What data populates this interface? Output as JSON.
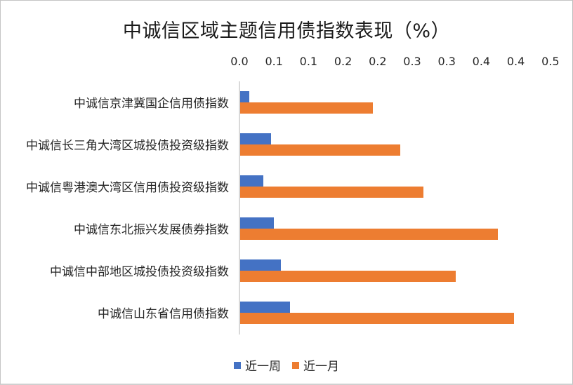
{
  "chart_data": {
    "type": "bar",
    "orientation": "horizontal",
    "title": "中诚信区域主题信用债指数表现（%）",
    "xlabel": "",
    "ylabel": "",
    "xlim": [
      0,
      0.45
    ],
    "x_tick_labels": [
      "0.0",
      "0.1",
      "0.1",
      "0.2",
      "0.2",
      "0.3",
      "0.3",
      "0.4",
      "0.4",
      "0.5"
    ],
    "x_tick_values": [
      0,
      0.05,
      0.1,
      0.15,
      0.2,
      0.25,
      0.3,
      0.35,
      0.4,
      0.45
    ],
    "x_axis_position": "top",
    "grid": false,
    "legend_position": "bottom",
    "categories": [
      "中诚信京津冀国企信用债指数",
      "中诚信长三角大湾区城投债投资级指数",
      "中诚信粤港澳大湾区信用债投资级指数",
      "中诚信东北振兴发展债券指数",
      "中诚信中部地区城投债投资级指数",
      "中诚信山东省信用债指数"
    ],
    "series": [
      {
        "name": "近一周",
        "color": "#4472C4",
        "values": [
          0.013,
          0.045,
          0.034,
          0.049,
          0.059,
          0.072
        ]
      },
      {
        "name": "近一月",
        "color": "#ED7D31",
        "values": [
          0.192,
          0.232,
          0.265,
          0.373,
          0.312,
          0.396
        ]
      }
    ]
  },
  "title": "中诚信区域主题信用债指数表现（%）",
  "ticks": [
    "0.0",
    "0.1",
    "0.1",
    "0.2",
    "0.2",
    "0.3",
    "0.3",
    "0.4",
    "0.4",
    "0.5"
  ],
  "legend": {
    "week": {
      "label": "近一周",
      "color": "#4472C4"
    },
    "month": {
      "label": "近一月",
      "color": "#ED7D31"
    }
  }
}
